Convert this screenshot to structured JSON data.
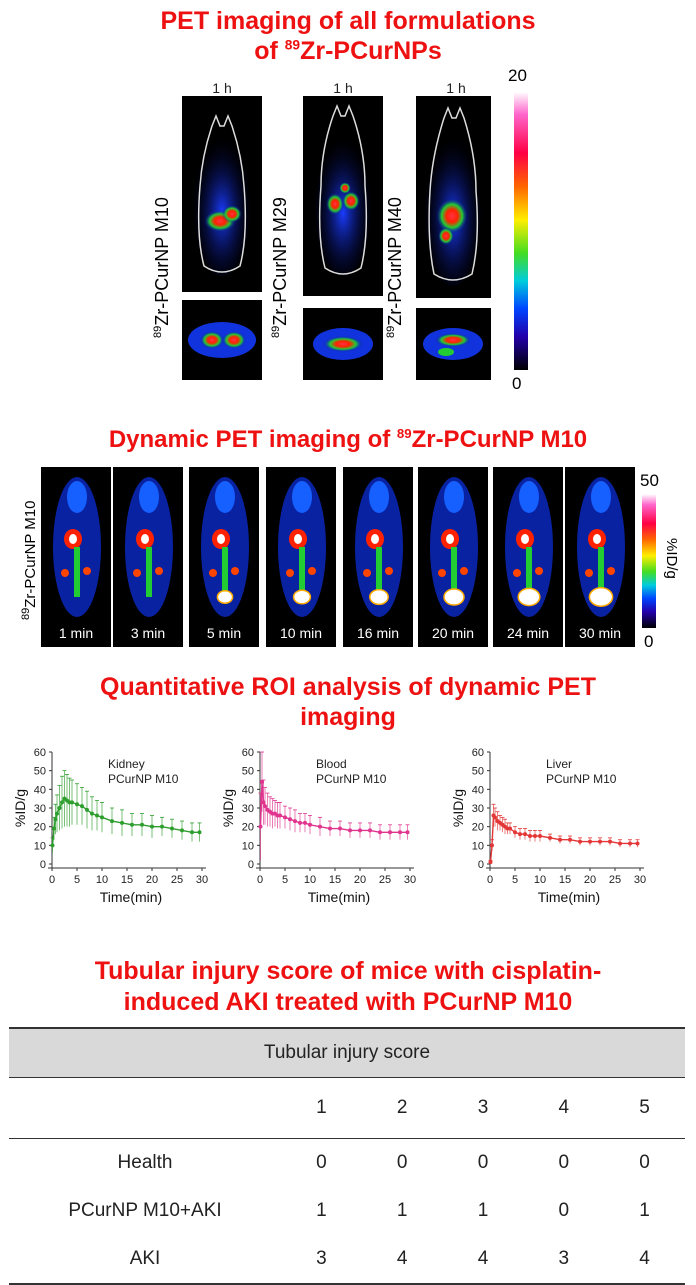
{
  "section1": {
    "title_line1": "PET imaging of all formulations",
    "title_line2_pre": "of ",
    "title_line2_sup": "89",
    "title_line2_post": "Zr-PCurNPs",
    "panels": [
      {
        "time": "1 h",
        "label_sup": "89",
        "label": "Zr-PCurNP M10"
      },
      {
        "time": "1 h",
        "label_sup": "89",
        "label": "Zr-PCurNP M29"
      },
      {
        "time": "1 h",
        "label_sup": "89",
        "label": "Zr-PCurNP M40"
      }
    ],
    "colorbar_max": "20",
    "colorbar_min": "0"
  },
  "section2": {
    "title_pre": "Dynamic PET imaging of ",
    "title_sup": "89",
    "title_post": "Zr-PCurNP M10",
    "side_label_sup": "89",
    "side_label": "Zr-PCurNP M10",
    "frames": [
      "1 min",
      "3 min",
      "5 min",
      "10 min",
      "16 min",
      "20 min",
      "24 min",
      "30 min"
    ],
    "colorbar_max": "50",
    "colorbar_min": "0",
    "colorbar_unit": "%ID/g"
  },
  "section3": {
    "title_line1": "Quantitative ROI analysis of dynamic PET",
    "title_line2": "imaging"
  },
  "chart_data": [
    {
      "type": "line",
      "annotation_line1": "Kidney",
      "annotation_line2": "PCurNP M10",
      "xlabel": "Time(min)",
      "ylabel": "%ID/g",
      "xlim": [
        0,
        30
      ],
      "ylim": [
        0,
        60
      ],
      "xticks": [
        0,
        5,
        10,
        15,
        20,
        25,
        30
      ],
      "yticks": [
        0,
        10,
        20,
        30,
        40,
        50,
        60
      ],
      "color": "#2e9e2e",
      "x": [
        0.1,
        0.4,
        0.7,
        1,
        1.5,
        2,
        2.5,
        3,
        3.5,
        4,
        5,
        6,
        7,
        8,
        9,
        10,
        12,
        14,
        16,
        18,
        20,
        22,
        24,
        26,
        28,
        29.5
      ],
      "y": [
        10,
        19,
        24,
        27,
        30,
        33,
        35,
        34,
        33,
        33,
        32,
        31,
        29,
        27,
        26,
        25,
        23,
        22,
        21,
        21,
        20,
        20,
        19,
        18,
        17,
        17
      ],
      "err": [
        4,
        6,
        8,
        10,
        12,
        14,
        15,
        14,
        13,
        12,
        11,
        10,
        10,
        9,
        8,
        8,
        7,
        7,
        6,
        6,
        6,
        5,
        5,
        5,
        5,
        5
      ]
    },
    {
      "type": "line",
      "annotation_line1": "Blood",
      "annotation_line2": "PCurNP M10",
      "xlabel": "Time(min)",
      "ylabel": "%ID/g",
      "xlim": [
        0,
        30
      ],
      "ylim": [
        0,
        60
      ],
      "xticks": [
        0,
        5,
        10,
        15,
        20,
        25,
        30
      ],
      "yticks": [
        0,
        10,
        20,
        30,
        40,
        50,
        60
      ],
      "color": "#e0348e",
      "x": [
        0.1,
        0.4,
        0.7,
        1,
        1.5,
        2,
        2.5,
        3,
        3.5,
        4,
        5,
        6,
        7,
        8,
        9,
        10,
        12,
        14,
        16,
        18,
        20,
        22,
        24,
        26,
        28,
        29.5
      ],
      "y": [
        20,
        44,
        33,
        31,
        29,
        28,
        27,
        27,
        26,
        26,
        25,
        24,
        23,
        22,
        22,
        21,
        20,
        19,
        19,
        18,
        18,
        18,
        17,
        17,
        17,
        17
      ],
      "err": [
        18,
        16,
        12,
        10,
        9,
        8,
        8,
        7,
        7,
        7,
        6,
        6,
        6,
        5,
        5,
        5,
        5,
        4,
        4,
        4,
        4,
        4,
        4,
        4,
        4,
        4
      ]
    },
    {
      "type": "line",
      "annotation_line1": "Liver",
      "annotation_line2": "PCurNP M10",
      "xlabel": "Time(min)",
      "ylabel": "%ID/g",
      "xlim": [
        0,
        30
      ],
      "ylim": [
        0,
        60
      ],
      "xticks": [
        0,
        5,
        10,
        15,
        20,
        25,
        30
      ],
      "yticks": [
        0,
        10,
        20,
        30,
        40,
        50,
        60
      ],
      "color": "#e33636",
      "x": [
        0.1,
        0.4,
        0.7,
        1,
        1.5,
        2,
        2.5,
        3,
        3.5,
        4,
        5,
        6,
        7,
        8,
        9,
        10,
        12,
        14,
        16,
        18,
        20,
        22,
        24,
        26,
        28,
        29.5
      ],
      "y": [
        1,
        10,
        26,
        25,
        23,
        22,
        21,
        20,
        19,
        19,
        17,
        16,
        16,
        15,
        15,
        15,
        14,
        13,
        13,
        12,
        12,
        12,
        12,
        11,
        11,
        11
      ],
      "err": [
        1,
        3,
        6,
        5,
        5,
        4,
        4,
        4,
        3,
        3,
        3,
        3,
        3,
        3,
        3,
        3,
        2,
        2,
        2,
        2,
        2,
        2,
        2,
        2,
        2,
        2
      ]
    }
  ],
  "section4": {
    "title_line1": "Tubular injury score of mice with cisplatin-",
    "title_line2": "induced AKI treated with PCurNP M10"
  },
  "table": {
    "header": "Tubular injury score",
    "columns": [
      "1",
      "2",
      "3",
      "4",
      "5"
    ],
    "rows": [
      {
        "label": "Health",
        "values": [
          "0",
          "0",
          "0",
          "0",
          "0"
        ]
      },
      {
        "label": "PCurNP M10+AKI",
        "values": [
          "1",
          "1",
          "1",
          "0",
          "1"
        ]
      },
      {
        "label": "AKI",
        "values": [
          "3",
          "4",
          "4",
          "3",
          "4"
        ]
      }
    ]
  }
}
